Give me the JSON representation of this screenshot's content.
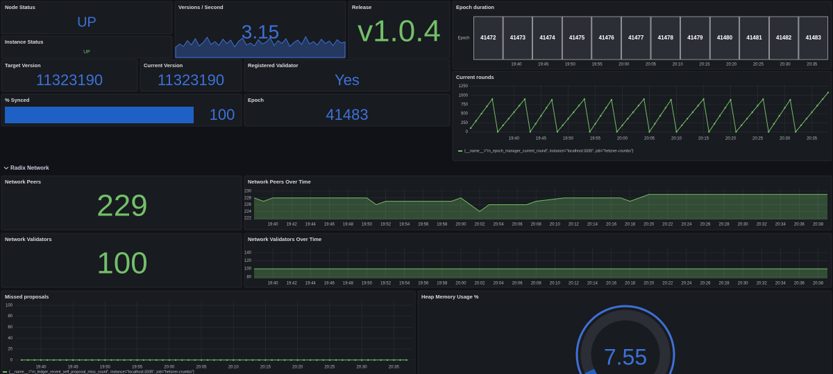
{
  "row": {
    "title": "Radix Network"
  },
  "panels": {
    "node_status": {
      "title": "Node Status",
      "value": "UP"
    },
    "instance_status": {
      "title": "Instance Status",
      "value": "UP"
    },
    "versions_per_second": {
      "title": "Versions / Second",
      "value": 3.15,
      "color": "#3d71d9",
      "values": [
        2.1,
        2.8,
        2.3,
        3.5,
        2.6,
        3.9,
        2.4,
        3.1,
        4.2,
        2.7,
        3.3,
        2.5,
        3.8,
        2.9,
        3.6,
        2.2,
        3.4,
        4.0,
        2.6,
        3.0,
        2.4,
        3.7,
        2.8,
        3.2,
        4.1,
        2.5,
        3.5,
        2.9,
        3.9,
        2.3,
        3.1,
        3.6,
        2.7,
        4.3,
        2.8,
        3.3,
        2.6,
        3.8,
        2.9,
        3.4,
        2.5,
        3.7,
        3.0,
        3.2
      ]
    },
    "release": {
      "title": "Release",
      "value": "v1.0.4"
    },
    "epoch_duration": {
      "title": "Epoch duration",
      "row_label": "Epoch",
      "states": [
        41472,
        41473,
        41474,
        41475,
        41476,
        41477,
        41478,
        41479,
        41480,
        41481,
        41482,
        41483
      ],
      "xlim": [
        "19:32",
        "20:38"
      ],
      "xticks": [
        "19:40",
        "19:45",
        "19:50",
        "19:55",
        "20:00",
        "20:05",
        "20:10",
        "20:15",
        "20:20",
        "20:25",
        "20:30",
        "20:35"
      ]
    },
    "target_version": {
      "title": "Target Version",
      "value": 11323190
    },
    "current_version": {
      "title": "Current Version",
      "value": 11323190
    },
    "registered_validator": {
      "title": "Registered Validator",
      "value": "Yes"
    },
    "synced": {
      "title": "% Synced",
      "value": 100,
      "range": [
        0,
        100
      ]
    },
    "epoch": {
      "title": "Epoch",
      "value": 41483
    },
    "current_rounds": {
      "title": "Current rounds",
      "type": "line",
      "color": "#73bf69",
      "x": [
        "19:32",
        "19:33",
        "19:34",
        "19:35",
        "19:36",
        "19:37",
        "19:38",
        "19:39",
        "19:40",
        "19:41",
        "19:42",
        "19:43",
        "19:44",
        "19:45",
        "19:46",
        "19:47",
        "19:48",
        "19:49",
        "19:50",
        "19:51",
        "19:52",
        "19:53",
        "19:54",
        "19:55",
        "19:56",
        "19:57",
        "19:58",
        "19:59",
        "20:00",
        "20:01",
        "20:02",
        "20:03",
        "20:04",
        "20:05",
        "20:06",
        "20:07",
        "20:08",
        "20:09",
        "20:10",
        "20:11",
        "20:12",
        "20:13",
        "20:14",
        "20:15",
        "20:16",
        "20:17",
        "20:18",
        "20:19",
        "20:20",
        "20:21",
        "20:22",
        "20:23",
        "20:24",
        "20:25",
        "20:26",
        "20:27",
        "20:28",
        "20:29",
        "20:30",
        "20:31",
        "20:32",
        "20:33",
        "20:34",
        "20:35",
        "20:36",
        "20:37",
        "20:38"
      ],
      "values": [
        100,
        300,
        500,
        700,
        900,
        0,
        180,
        360,
        540,
        720,
        900,
        0,
        220,
        440,
        660,
        880,
        0,
        180,
        360,
        540,
        720,
        900,
        0,
        220,
        440,
        660,
        880,
        0,
        180,
        360,
        540,
        720,
        900,
        0,
        220,
        440,
        660,
        880,
        0,
        180,
        360,
        540,
        720,
        900,
        0,
        220,
        440,
        660,
        880,
        0,
        180,
        360,
        540,
        720,
        900,
        0,
        220,
        440,
        660,
        880,
        0,
        180,
        360,
        540,
        720,
        900,
        1080
      ],
      "xlim": [
        "19:32",
        "20:38"
      ],
      "ylim": [
        -50,
        1300
      ],
      "xticks": [
        "19:40",
        "19:45",
        "19:50",
        "19:55",
        "20:00",
        "20:05",
        "20:10",
        "20:15",
        "20:20",
        "20:25",
        "20:30",
        "20:35"
      ],
      "yticks": [
        0,
        250,
        500,
        750,
        1000,
        1250
      ],
      "legend": "{__name__=\"rn_epoch_manager_current_round\", instance=\"localhost:3335\", job=\"hetzner-crumbs\"}"
    },
    "network_peers": {
      "title": "Network Peers",
      "value": 229
    },
    "network_peers_over_time": {
      "title": "Network Peers Over Time",
      "type": "area",
      "color": "#73bf69",
      "x": [
        "19:38",
        "19:39",
        "19:40",
        "19:50",
        "19:51",
        "19:52",
        "19:59",
        "20:00",
        "20:02",
        "20:03",
        "20:07",
        "20:08",
        "20:11",
        "20:17",
        "20:18",
        "20:20",
        "20:39"
      ],
      "values": [
        228,
        227,
        228,
        228,
        226,
        227,
        227,
        228,
        224,
        226,
        226,
        227,
        228,
        228,
        227,
        229,
        229
      ],
      "xlim": [
        "19:38",
        "20:39"
      ],
      "ylim": [
        221.6,
        230.8
      ],
      "xticks": [
        "19:40",
        "19:42",
        "19:44",
        "19:46",
        "19:48",
        "19:50",
        "19:52",
        "19:54",
        "19:56",
        "19:58",
        "20:00",
        "20:02",
        "20:04",
        "20:06",
        "20:08",
        "20:10",
        "20:12",
        "20:14",
        "20:16",
        "20:18",
        "20:20",
        "20:22",
        "20:24",
        "20:26",
        "20:28",
        "20:30",
        "20:32",
        "20:34",
        "20:36",
        "20:38"
      ],
      "yticks": [
        222,
        224,
        226,
        228,
        230
      ]
    },
    "network_validators": {
      "title": "Network Validators",
      "value": 100
    },
    "network_validators_over_time": {
      "title": "Network Validators Over Time",
      "type": "area",
      "color": "#73bf69",
      "x": [
        "19:38",
        "20:39"
      ],
      "values": [
        100,
        100
      ],
      "xlim": [
        "19:38",
        "20:39"
      ],
      "ylim": [
        76,
        152
      ],
      "xticks": [
        "19:40",
        "19:42",
        "19:44",
        "19:46",
        "19:48",
        "19:50",
        "19:52",
        "19:54",
        "19:56",
        "19:58",
        "20:00",
        "20:02",
        "20:04",
        "20:06",
        "20:08",
        "20:10",
        "20:12",
        "20:14",
        "20:16",
        "20:18",
        "20:20",
        "20:22",
        "20:24",
        "20:26",
        "20:28",
        "20:30",
        "20:32",
        "20:34",
        "20:36",
        "20:38"
      ],
      "yticks": [
        80,
        100,
        120,
        140
      ]
    },
    "missed_proposals": {
      "title": "Missed proposals",
      "type": "line",
      "color": "#73bf69",
      "x": [
        "19:37",
        "19:38",
        "19:39",
        "19:40",
        "19:41",
        "19:42",
        "19:43",
        "19:44",
        "19:45",
        "19:46",
        "19:47",
        "19:48",
        "19:49",
        "19:50",
        "19:51",
        "19:52",
        "19:53",
        "19:54",
        "19:55",
        "19:56",
        "19:57",
        "19:58",
        "19:59",
        "20:00",
        "20:01",
        "20:02",
        "20:03",
        "20:04",
        "20:05",
        "20:06",
        "20:07",
        "20:08",
        "20:09",
        "20:10",
        "20:11",
        "20:12",
        "20:13",
        "20:14",
        "20:15",
        "20:16",
        "20:17",
        "20:18",
        "20:19",
        "20:20",
        "20:21",
        "20:22",
        "20:23",
        "20:24",
        "20:25",
        "20:26",
        "20:27",
        "20:28",
        "20:29",
        "20:30",
        "20:31",
        "20:32",
        "20:33",
        "20:34",
        "20:35",
        "20:36",
        "20:37"
      ],
      "values": [
        0,
        0,
        0,
        0,
        0,
        0,
        0,
        0,
        0,
        0,
        0,
        0,
        0,
        0,
        0,
        0,
        0,
        0,
        0,
        0,
        0,
        0,
        0,
        0,
        0,
        0,
        0,
        0,
        0,
        0,
        0,
        0,
        0,
        0,
        0,
        0,
        0,
        0,
        0,
        0,
        0,
        0,
        0,
        0,
        0,
        0,
        0,
        0,
        0,
        0,
        0,
        0,
        0,
        0,
        0,
        0,
        0,
        0,
        0,
        0,
        0
      ],
      "xlim": [
        "19:36",
        "20:38"
      ],
      "ylim": [
        -4,
        106
      ],
      "xticks": [
        "19:40",
        "19:45",
        "19:50",
        "19:55",
        "20:00",
        "20:05",
        "20:10",
        "20:15",
        "20:20",
        "20:25",
        "20:30",
        "20:35"
      ],
      "yticks": [
        0,
        20,
        40,
        60,
        80,
        100
      ],
      "legend": "{__name__=\"rn_ledger_recent_self_proposal_miss_count\", instance=\"localhost:3335\", job=\"hetzner-crumbs\"}"
    },
    "heap_memory": {
      "title": "Heap Memory Usage %",
      "value": 7.55,
      "range": [
        0,
        100
      ],
      "color": "#3d71d9"
    }
  }
}
